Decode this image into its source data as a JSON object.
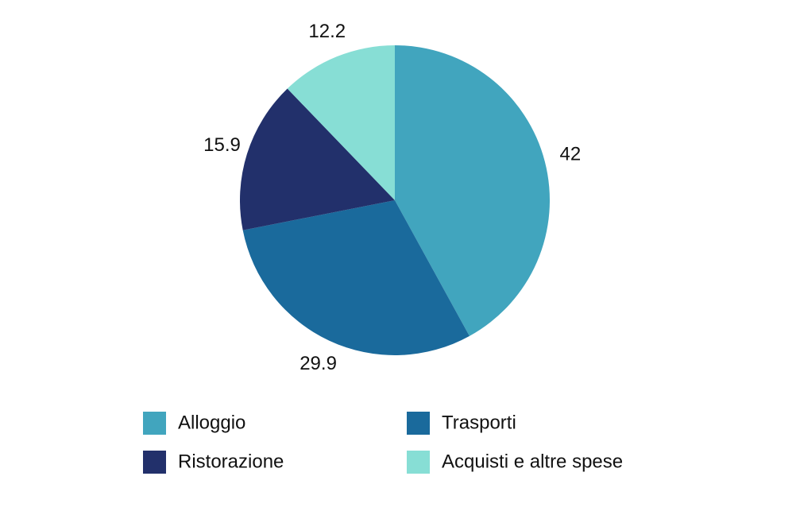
{
  "chart_data": {
    "type": "pie",
    "categories": [
      "Alloggio",
      "Trasporti",
      "Ristorazione",
      "Acquisti e altre spese"
    ],
    "values": [
      42,
      29.9,
      15.9,
      12.2
    ],
    "colors": [
      "#41a5be",
      "#1a6a9c",
      "#22306b",
      "#87ded5"
    ],
    "start_angle": 0,
    "direction": "clockwise",
    "legend": "bottom"
  }
}
